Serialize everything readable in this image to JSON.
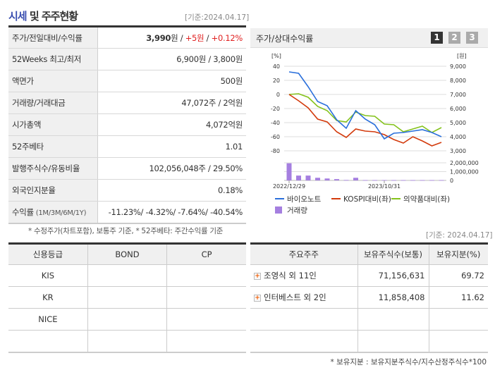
{
  "header": {
    "title_highlight": "시세",
    "title_rest": " 및 주주현황",
    "date": "[기준:2024.04.17]"
  },
  "info": [
    {
      "label": "주가/전일대비/수익률",
      "price": "3,990",
      "unit": "원",
      "sep": " / ",
      "change": "+5원",
      "sep2": " / ",
      "rate": "+0.12%"
    },
    {
      "label": "52Weeks 최고/최저",
      "value": "6,900원 / 3,800원"
    },
    {
      "label": "액면가",
      "value": "500원"
    },
    {
      "label": "거래량/거래대금",
      "value": "47,072주 / 2억원"
    },
    {
      "label": "시가총액",
      "value": "4,072억원"
    },
    {
      "label": "52주베타",
      "value": "1.01"
    },
    {
      "label": "발행주식수/유동비율",
      "value": "102,056,048주 / 29.50%"
    },
    {
      "label": "외국인지분율",
      "value": "0.18%"
    },
    {
      "label": "수익률",
      "label_sub": " (1M/3M/6M/1Y)",
      "value": "-11.23%/ -4.32%/ -7.64%/ -40.54%"
    }
  ],
  "note1": "* 수정주가(차트포함), 보통주 기준, * 52주베타: 주간수익률 기준",
  "chart_panel": {
    "title": "주가/상대수익률",
    "pages": [
      "1",
      "2",
      "3"
    ],
    "active_page": "1"
  },
  "chart_data": {
    "type": "line",
    "left_unit": "[%]",
    "right_unit": "[원]",
    "left_ticks": [
      "40",
      "20",
      "0",
      "-20",
      "-40",
      "-60",
      "-80"
    ],
    "right_ticks": [
      "9,000",
      "8,000",
      "7,000",
      "6,000",
      "5,000",
      "4,000",
      "3,000"
    ],
    "volume_ticks": [
      "2,000,000",
      "1,000,000",
      "0"
    ],
    "x_labels": [
      {
        "index": 0,
        "label": "2022/12/29"
      },
      {
        "index": 10,
        "label": "2023/10/31"
      }
    ],
    "ylim": [
      -80,
      40
    ],
    "series": [
      {
        "name": "바이오노트",
        "color": "#2a6fdb",
        "values": [
          32,
          30,
          11,
          -10,
          -16,
          -36,
          -48,
          -23,
          -35,
          -43,
          -63,
          -55,
          -54,
          -52,
          -50,
          -54,
          -60
        ]
      },
      {
        "name": "KOSPI대비(좌)",
        "color": "#d33a0c",
        "values": [
          0,
          -9,
          -19,
          -35,
          -39,
          -53,
          -61,
          -49,
          -52,
          -53,
          -57,
          -64,
          -69,
          -60,
          -66,
          -73,
          -68
        ]
      },
      {
        "name": "의약품대비(좌)",
        "color": "#84c21b",
        "values": [
          0,
          1,
          -4,
          -17,
          -23,
          -37,
          -39,
          -25,
          -30,
          -31,
          -42,
          -43,
          -53,
          -49,
          -45,
          -54,
          -47
        ]
      }
    ],
    "volume": {
      "name": "거래량",
      "color": "#a57fe0",
      "values": [
        1950000,
        550000,
        550000,
        300000,
        220000,
        150000,
        50000,
        300000,
        40000,
        40000,
        40000,
        40000,
        40000,
        40000,
        40000,
        40000,
        40000
      ],
      "max": 2000000
    }
  },
  "date2": "[기준: 2024.04.17]",
  "credit": {
    "headers": [
      "신용등급",
      "BOND",
      "CP"
    ],
    "rows": [
      [
        "KIS",
        "",
        ""
      ],
      [
        "KR",
        "",
        ""
      ],
      [
        "NICE",
        "",
        ""
      ],
      [
        "",
        "",
        ""
      ]
    ]
  },
  "holders": {
    "headers": [
      "주요주주",
      "보유주식수(보통)",
      "보유지분(%)"
    ],
    "rows": [
      [
        "조영식 외 11인",
        "71,156,631",
        "69.72"
      ],
      [
        "인터베스트 외 2인",
        "11,858,408",
        "11.62"
      ]
    ]
  },
  "note2": "* 보유지분 : 보유지분주식수/지수산정주식수*100"
}
